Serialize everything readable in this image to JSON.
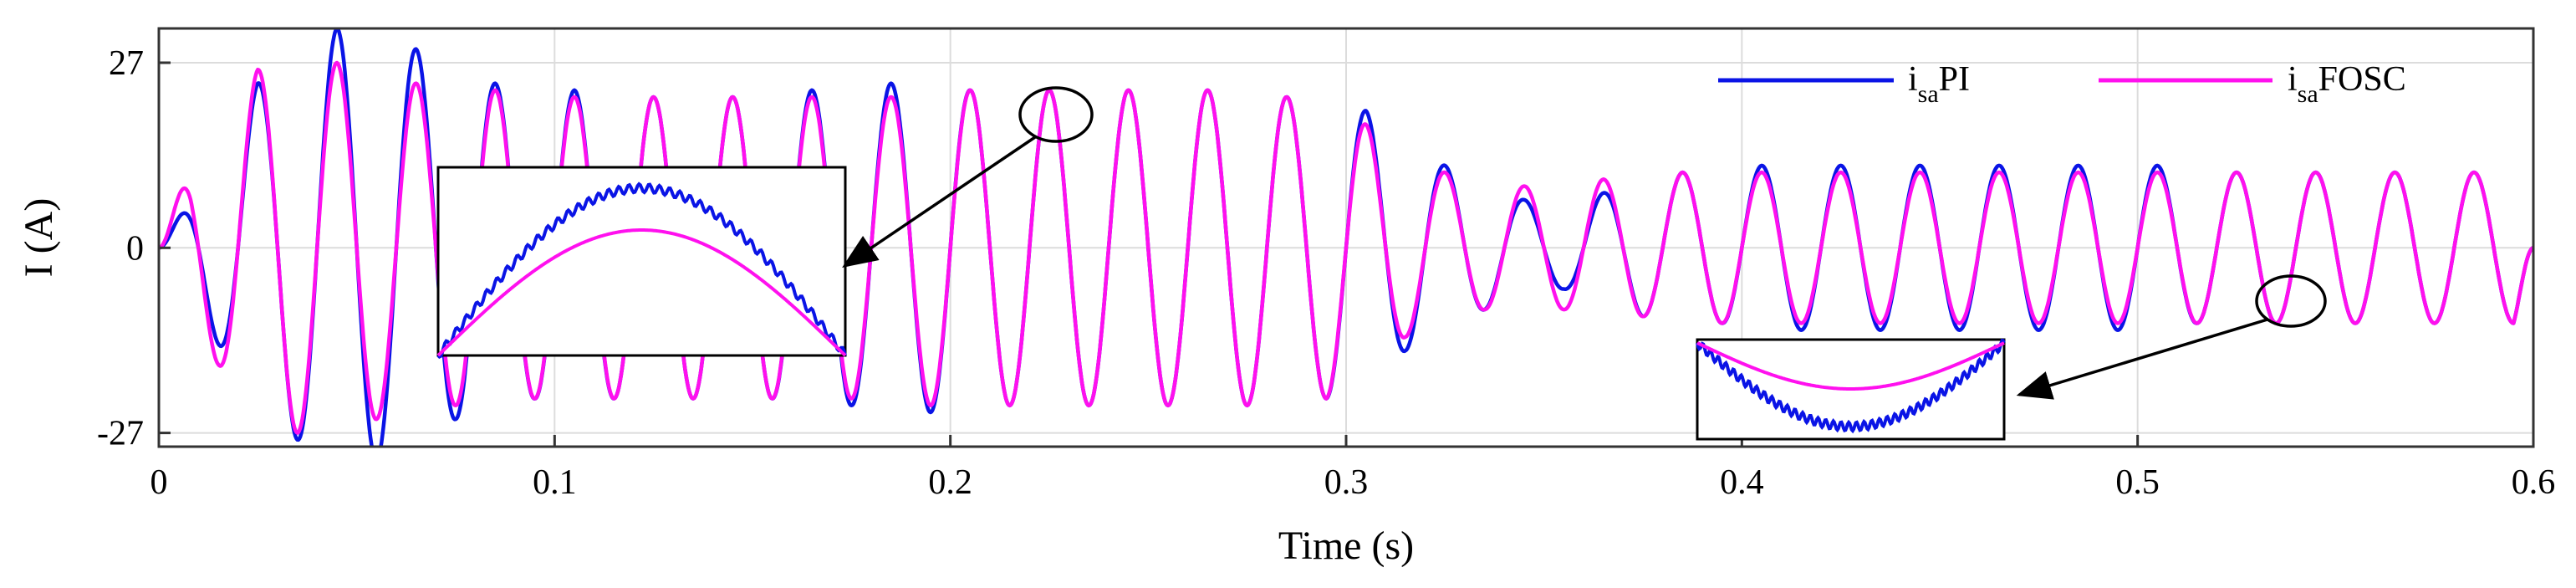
{
  "chart_data": {
    "type": "line",
    "xlabel": "Time (s)",
    "ylabel": "I (A)",
    "xlim": [
      0,
      0.6
    ],
    "ylim": [
      -29,
      32
    ],
    "xticks": [
      0,
      0.1,
      0.2,
      0.3,
      0.4,
      0.5,
      0.6
    ],
    "xtick_labels": [
      "0",
      "0.1",
      "0.2",
      "0.3",
      "0.4",
      "0.5",
      "0.6"
    ],
    "yticks": [
      -27,
      0,
      27
    ],
    "ytick_labels": [
      "-27",
      "0",
      "27"
    ],
    "grid": true,
    "legend_placement": "top-right",
    "frequency_hz": 50,
    "series": [
      {
        "name_main": "i",
        "name_sub": "sa",
        "name_suffix": "PI",
        "color": "#0a14e6",
        "envelope": [
          [
            0,
            0
          ],
          [
            0.008,
            7
          ],
          [
            0.015,
            -14
          ],
          [
            0.025,
            24
          ],
          [
            0.035,
            -28
          ],
          [
            0.045,
            32
          ],
          [
            0.055,
            -31
          ],
          [
            0.065,
            29
          ],
          [
            0.075,
            -25
          ],
          [
            0.085,
            24
          ],
          [
            0.095,
            -22
          ],
          [
            0.105,
            23
          ],
          [
            0.115,
            -22
          ],
          [
            0.125,
            22
          ],
          [
            0.135,
            -22
          ],
          [
            0.145,
            22
          ],
          [
            0.155,
            -22
          ],
          [
            0.165,
            23
          ],
          [
            0.175,
            -23
          ],
          [
            0.185,
            24
          ],
          [
            0.195,
            -24
          ],
          [
            0.205,
            23
          ],
          [
            0.215,
            -23
          ],
          [
            0.225,
            23
          ],
          [
            0.235,
            -23
          ],
          [
            0.245,
            23
          ],
          [
            0.255,
            -23
          ],
          [
            0.265,
            23
          ],
          [
            0.275,
            -23
          ],
          [
            0.285,
            22
          ],
          [
            0.295,
            -22
          ],
          [
            0.305,
            20
          ],
          [
            0.315,
            -15
          ],
          [
            0.325,
            12
          ],
          [
            0.335,
            -9
          ],
          [
            0.345,
            7
          ],
          [
            0.355,
            -6
          ],
          [
            0.365,
            8
          ],
          [
            0.375,
            -10
          ],
          [
            0.385,
            11
          ],
          [
            0.395,
            -11
          ],
          [
            0.405,
            12
          ],
          [
            0.415,
            -12
          ],
          [
            0.425,
            12
          ],
          [
            0.435,
            -12
          ],
          [
            0.445,
            12
          ],
          [
            0.455,
            -12
          ],
          [
            0.465,
            12
          ],
          [
            0.475,
            -12
          ],
          [
            0.485,
            12
          ],
          [
            0.495,
            -12
          ],
          [
            0.505,
            12
          ],
          [
            0.515,
            -11
          ],
          [
            0.525,
            11
          ],
          [
            0.535,
            -11
          ],
          [
            0.545,
            11
          ],
          [
            0.555,
            -11
          ],
          [
            0.565,
            11
          ],
          [
            0.575,
            -11
          ],
          [
            0.585,
            11
          ],
          [
            0.595,
            -11
          ],
          [
            0.6,
            0
          ]
        ]
      },
      {
        "name_main": "i",
        "name_sub": "sa",
        "name_suffix": "FOSC",
        "color": "#ff10ee",
        "envelope": [
          [
            0,
            0
          ],
          [
            0.008,
            12
          ],
          [
            0.015,
            -17
          ],
          [
            0.025,
            26
          ],
          [
            0.035,
            -27
          ],
          [
            0.045,
            27
          ],
          [
            0.055,
            -25
          ],
          [
            0.065,
            24
          ],
          [
            0.075,
            -23
          ],
          [
            0.085,
            23
          ],
          [
            0.095,
            -22
          ],
          [
            0.105,
            22
          ],
          [
            0.115,
            -22
          ],
          [
            0.125,
            22
          ],
          [
            0.135,
            -22
          ],
          [
            0.145,
            22
          ],
          [
            0.155,
            -22
          ],
          [
            0.165,
            22
          ],
          [
            0.175,
            -22
          ],
          [
            0.185,
            22
          ],
          [
            0.195,
            -23
          ],
          [
            0.205,
            23
          ],
          [
            0.215,
            -23
          ],
          [
            0.225,
            23
          ],
          [
            0.235,
            -23
          ],
          [
            0.245,
            23
          ],
          [
            0.255,
            -23
          ],
          [
            0.265,
            23
          ],
          [
            0.275,
            -23
          ],
          [
            0.285,
            22
          ],
          [
            0.295,
            -22
          ],
          [
            0.305,
            18
          ],
          [
            0.315,
            -13
          ],
          [
            0.325,
            11
          ],
          [
            0.335,
            -9
          ],
          [
            0.345,
            9
          ],
          [
            0.355,
            -9
          ],
          [
            0.365,
            10
          ],
          [
            0.375,
            -10
          ],
          [
            0.385,
            11
          ],
          [
            0.395,
            -11
          ],
          [
            0.405,
            11
          ],
          [
            0.415,
            -11
          ],
          [
            0.425,
            11
          ],
          [
            0.435,
            -11
          ],
          [
            0.445,
            11
          ],
          [
            0.455,
            -11
          ],
          [
            0.465,
            11
          ],
          [
            0.475,
            -11
          ],
          [
            0.485,
            11
          ],
          [
            0.495,
            -11
          ],
          [
            0.505,
            11
          ],
          [
            0.515,
            -11
          ],
          [
            0.525,
            11
          ],
          [
            0.535,
            -11
          ],
          [
            0.545,
            11
          ],
          [
            0.555,
            -11
          ],
          [
            0.565,
            11
          ],
          [
            0.575,
            -11
          ],
          [
            0.585,
            11
          ],
          [
            0.595,
            -11
          ],
          [
            0.6,
            0
          ]
        ]
      }
    ],
    "annotations": [
      {
        "type": "circle-arrow-inset",
        "target_x": 0.225,
        "target_y": 22,
        "inset_region": [
          0.064,
          0.174,
          -16,
          10
        ]
      },
      {
        "type": "circle-arrow-inset",
        "target_x": 0.535,
        "target_y": -9,
        "inset_region": [
          0.389,
          0.468,
          -28,
          -14
        ]
      }
    ]
  }
}
